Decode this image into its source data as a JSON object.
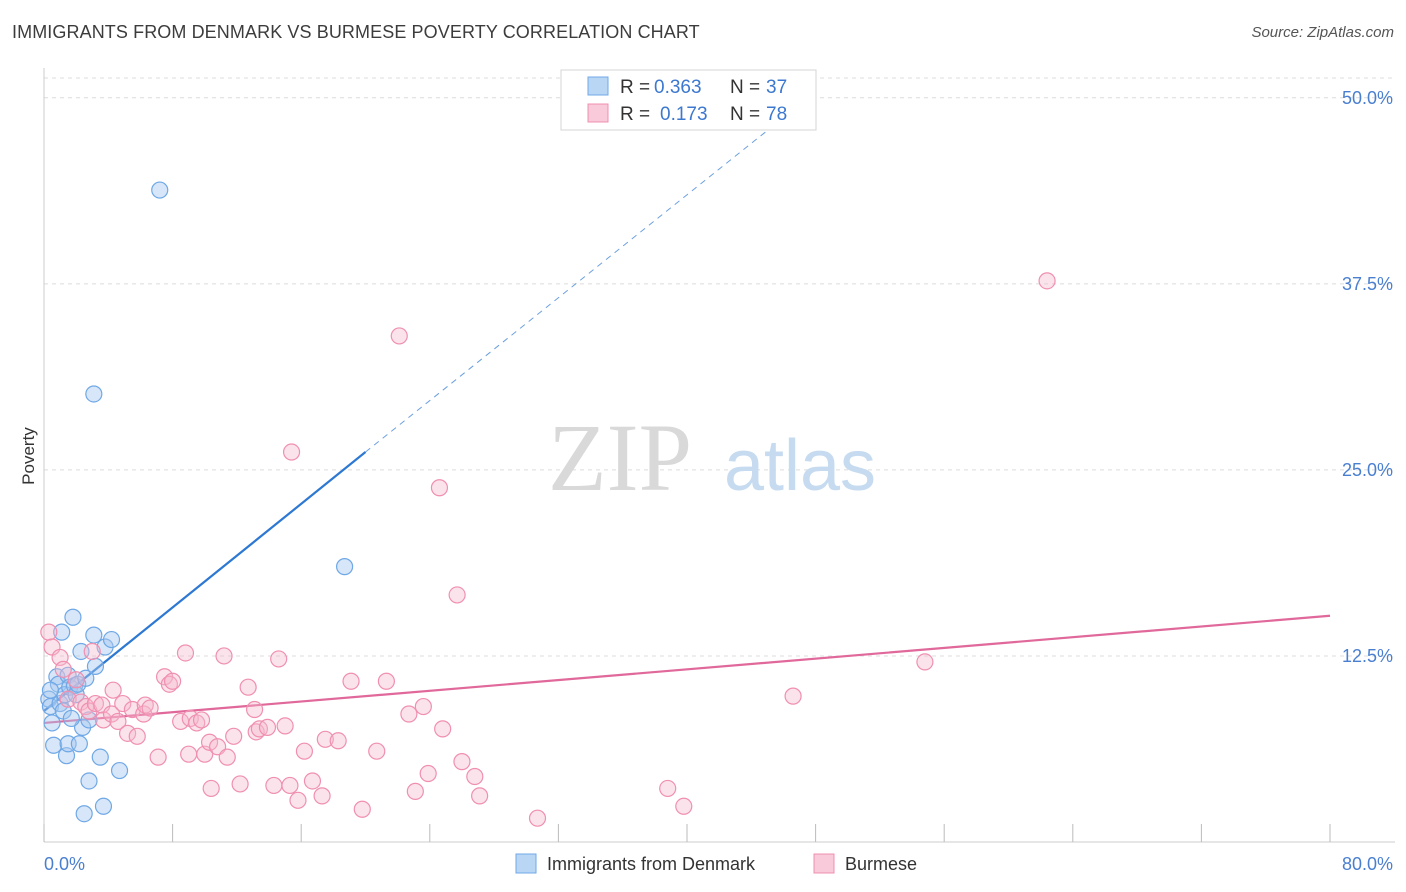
{
  "header": {
    "title": "IMMIGRANTS FROM DENMARK VS BURMESE POVERTY CORRELATION CHART",
    "source": "Source: ZipAtlas.com"
  },
  "watermark": {
    "zip": "ZIP",
    "atlas": "atlas"
  },
  "legend_stats": [
    {
      "r_label": "R =",
      "r_value": "0.363",
      "n_label": "N =",
      "n_value": "37"
    },
    {
      "r_label": "R =",
      "r_value": "0.173",
      "n_label": "N =",
      "n_value": "78"
    }
  ],
  "chart_data": {
    "type": "scatter",
    "ylabel": "Poverty",
    "xlim": [
      0,
      80
    ],
    "ylim": [
      0,
      52
    ],
    "x_tick_labels": [
      "0.0%",
      "80.0%"
    ],
    "y_ticks": [
      12.5,
      25.0,
      37.5,
      50.0
    ],
    "y_tick_labels": [
      "12.5%",
      "25.0%",
      "37.5%",
      "50.0%"
    ],
    "grid": true,
    "legend_position": "bottom",
    "colors": {
      "denmark": "#6fa8e6",
      "burmese": "#f08fb0",
      "denmark_line": "#2d78d2",
      "burmese_line": "#e0689a",
      "tick_label": "#4a7fd0"
    },
    "series": [
      {
        "name": "Immigrants from Denmark",
        "points": [
          [
            0.3,
            9.6
          ],
          [
            0.4,
            9.1
          ],
          [
            0.5,
            8.0
          ],
          [
            0.6,
            6.5
          ],
          [
            0.8,
            11.1
          ],
          [
            0.9,
            10.6
          ],
          [
            1.0,
            9.3
          ],
          [
            1.1,
            14.1
          ],
          [
            1.2,
            8.8
          ],
          [
            1.3,
            9.9
          ],
          [
            1.4,
            5.8
          ],
          [
            1.5,
            6.6
          ],
          [
            1.5,
            11.2
          ],
          [
            1.6,
            10.4
          ],
          [
            1.8,
            15.1
          ],
          [
            1.9,
            10.5
          ],
          [
            2.0,
            9.9
          ],
          [
            2.1,
            10.6
          ],
          [
            2.2,
            6.6
          ],
          [
            2.3,
            12.8
          ],
          [
            2.4,
            7.7
          ],
          [
            2.5,
            1.9
          ],
          [
            2.6,
            11.0
          ],
          [
            2.8,
            8.2
          ],
          [
            2.8,
            4.1
          ],
          [
            3.1,
            13.9
          ],
          [
            3.2,
            11.8
          ],
          [
            3.5,
            5.7
          ],
          [
            3.7,
            2.4
          ],
          [
            3.8,
            13.1
          ],
          [
            4.2,
            13.6
          ],
          [
            4.7,
            4.8
          ],
          [
            3.1,
            30.1
          ],
          [
            7.2,
            43.8
          ],
          [
            18.7,
            18.5
          ],
          [
            0.4,
            10.2
          ],
          [
            1.7,
            8.3
          ]
        ]
      },
      {
        "name": "Burmese",
        "points": [
          [
            0.3,
            14.1
          ],
          [
            0.5,
            13.1
          ],
          [
            1.0,
            12.4
          ],
          [
            1.2,
            11.6
          ],
          [
            1.5,
            9.6
          ],
          [
            2.0,
            10.9
          ],
          [
            2.3,
            9.4
          ],
          [
            2.6,
            9.1
          ],
          [
            2.8,
            8.8
          ],
          [
            3.0,
            12.8
          ],
          [
            3.2,
            9.3
          ],
          [
            3.6,
            9.2
          ],
          [
            3.7,
            8.2
          ],
          [
            4.2,
            8.6
          ],
          [
            4.3,
            10.2
          ],
          [
            4.6,
            8.1
          ],
          [
            4.9,
            9.3
          ],
          [
            5.2,
            7.3
          ],
          [
            5.5,
            8.9
          ],
          [
            5.8,
            7.1
          ],
          [
            6.2,
            8.6
          ],
          [
            6.3,
            9.2
          ],
          [
            6.6,
            9.0
          ],
          [
            7.1,
            5.7
          ],
          [
            7.5,
            11.1
          ],
          [
            7.8,
            10.6
          ],
          [
            8.0,
            10.8
          ],
          [
            8.5,
            8.1
          ],
          [
            8.8,
            12.7
          ],
          [
            9.0,
            5.9
          ],
          [
            9.1,
            8.3
          ],
          [
            9.5,
            8.0
          ],
          [
            9.8,
            8.2
          ],
          [
            10.0,
            5.9
          ],
          [
            10.3,
            6.7
          ],
          [
            10.4,
            3.6
          ],
          [
            10.8,
            6.4
          ],
          [
            11.2,
            12.5
          ],
          [
            11.4,
            5.7
          ],
          [
            11.8,
            7.1
          ],
          [
            12.2,
            3.9
          ],
          [
            12.7,
            10.4
          ],
          [
            13.1,
            8.9
          ],
          [
            13.2,
            7.4
          ],
          [
            13.4,
            7.6
          ],
          [
            13.9,
            7.7
          ],
          [
            14.3,
            3.8
          ],
          [
            14.6,
            12.3
          ],
          [
            15.0,
            7.8
          ],
          [
            15.3,
            3.8
          ],
          [
            15.8,
            2.8
          ],
          [
            16.2,
            6.1
          ],
          [
            16.7,
            4.1
          ],
          [
            17.3,
            3.1
          ],
          [
            17.5,
            6.9
          ],
          [
            18.3,
            6.8
          ],
          [
            19.1,
            10.8
          ],
          [
            19.8,
            2.2
          ],
          [
            20.7,
            6.1
          ],
          [
            21.3,
            10.8
          ],
          [
            22.7,
            8.6
          ],
          [
            23.1,
            3.4
          ],
          [
            23.6,
            9.1
          ],
          [
            23.9,
            4.6
          ],
          [
            24.8,
            7.6
          ],
          [
            26.0,
            5.4
          ],
          [
            26.8,
            4.4
          ],
          [
            27.1,
            3.1
          ],
          [
            30.7,
            1.6
          ],
          [
            38.8,
            3.6
          ],
          [
            39.8,
            2.4
          ],
          [
            46.6,
            9.8
          ],
          [
            54.8,
            12.1
          ],
          [
            62.4,
            37.7
          ],
          [
            22.1,
            34.0
          ],
          [
            15.4,
            26.2
          ],
          [
            24.6,
            23.8
          ],
          [
            25.7,
            16.6
          ]
        ]
      }
    ],
    "trend_lines": [
      {
        "series": "Immigrants from Denmark",
        "x": [
          0,
          20
        ],
        "y": [
          8.8,
          26.2
        ],
        "dashed_extension_to": [
          45,
          47.8
        ]
      },
      {
        "series": "Burmese",
        "x": [
          0,
          80
        ],
        "y": [
          8.0,
          15.2
        ]
      }
    ]
  }
}
